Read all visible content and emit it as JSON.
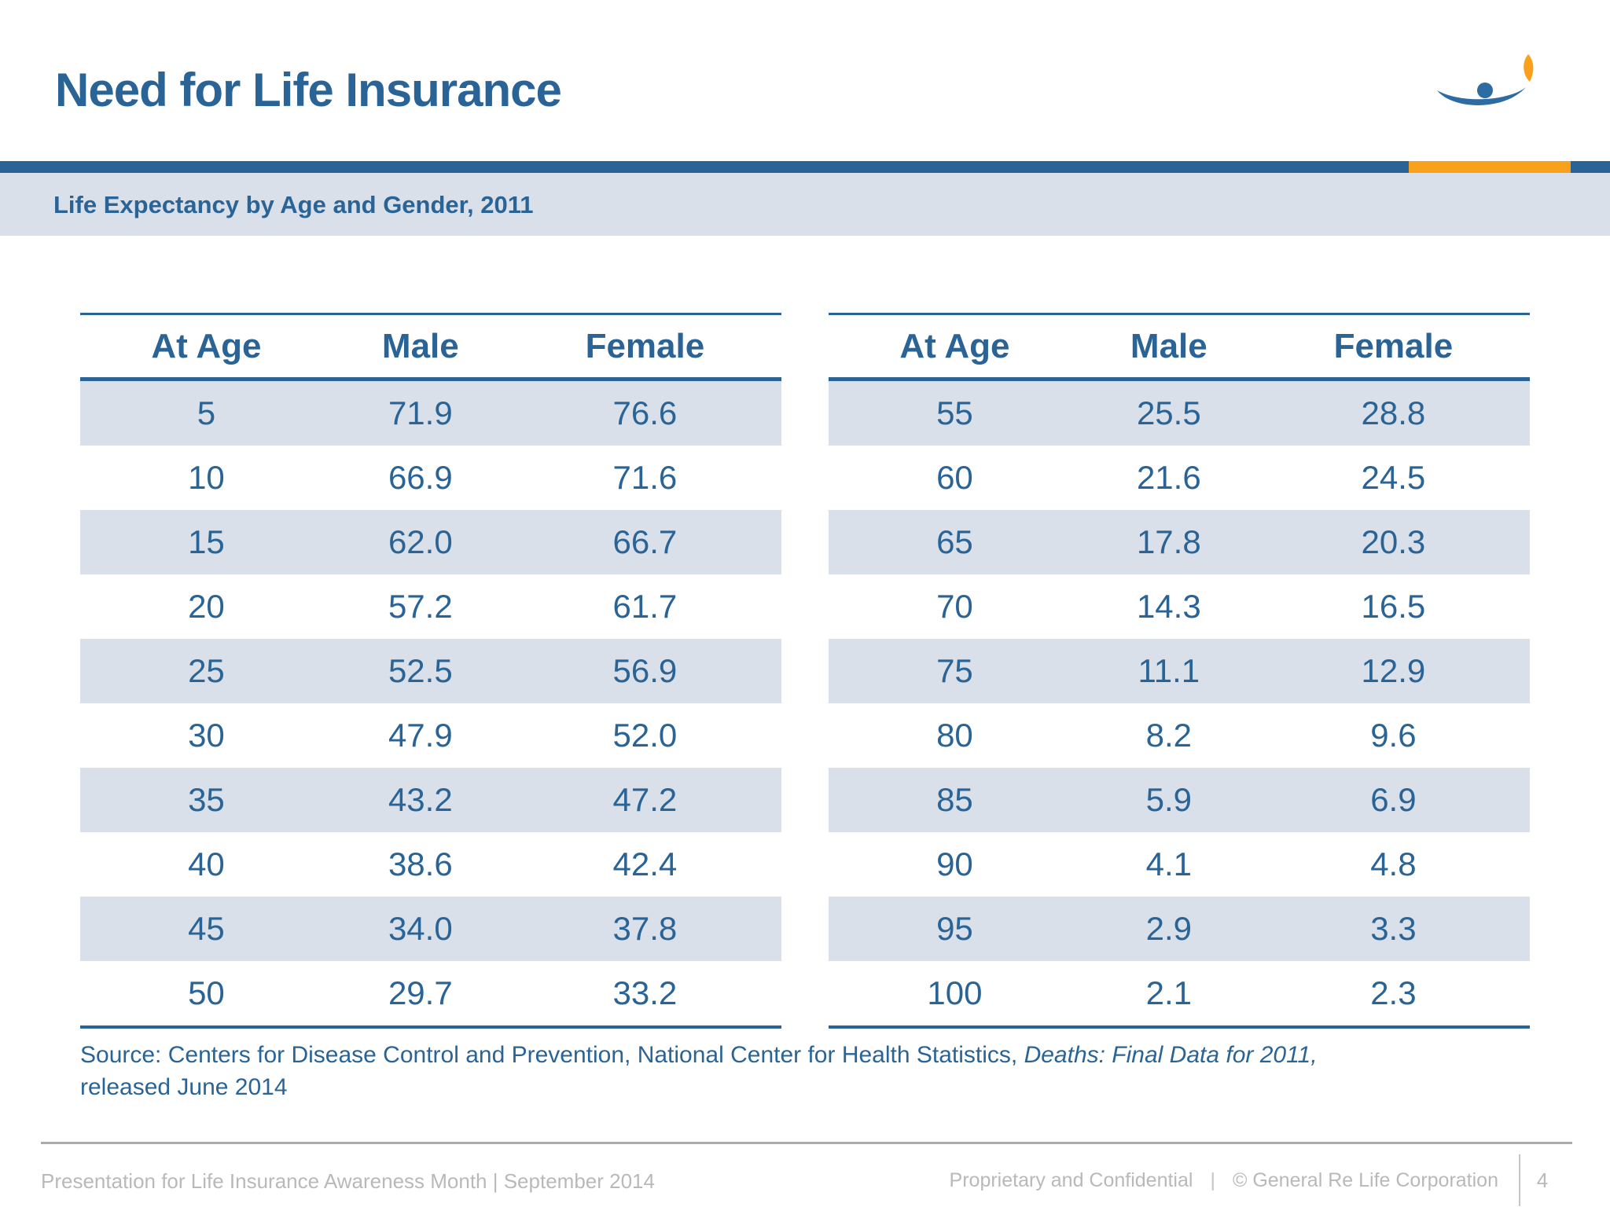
{
  "header": {
    "title": "Need for Life Insurance"
  },
  "subtitle": "Life Expectancy by Age and Gender, 2011",
  "logo": {
    "name": "general-re-life-logo",
    "blue": "#2D6CA2",
    "orange": "#F9A11B"
  },
  "colors": {
    "accent_blue": "#2A6496",
    "accent_orange": "#F9A11B",
    "band_and_stripe": "#D9E0EA",
    "footer_gray": "#B9B9BC"
  },
  "tables": {
    "left": {
      "columns": [
        "At Age",
        "Male",
        "Female"
      ],
      "rows": [
        [
          "5",
          "71.9",
          "76.6"
        ],
        [
          "10",
          "66.9",
          "71.6"
        ],
        [
          "15",
          "62.0",
          "66.7"
        ],
        [
          "20",
          "57.2",
          "61.7"
        ],
        [
          "25",
          "52.5",
          "56.9"
        ],
        [
          "30",
          "47.9",
          "52.0"
        ],
        [
          "35",
          "43.2",
          "47.2"
        ],
        [
          "40",
          "38.6",
          "42.4"
        ],
        [
          "45",
          "34.0",
          "37.8"
        ],
        [
          "50",
          "29.7",
          "33.2"
        ]
      ]
    },
    "right": {
      "columns": [
        "At Age",
        "Male",
        "Female"
      ],
      "rows": [
        [
          "55",
          "25.5",
          "28.8"
        ],
        [
          "60",
          "21.6",
          "24.5"
        ],
        [
          "65",
          "17.8",
          "20.3"
        ],
        [
          "70",
          "14.3",
          "16.5"
        ],
        [
          "75",
          "11.1",
          "12.9"
        ],
        [
          "80",
          "8.2",
          "9.6"
        ],
        [
          "85",
          "5.9",
          "6.9"
        ],
        [
          "90",
          "4.1",
          "4.8"
        ],
        [
          "95",
          "2.9",
          "3.3"
        ],
        [
          "100",
          "2.1",
          "2.3"
        ]
      ]
    }
  },
  "source": {
    "prefix": "Source: Centers for Disease Control and Prevention, National Center for Health Statistics, ",
    "italic": "Deaths: Final Data for 2011,",
    "suffix": "released June 2014"
  },
  "footer": {
    "left": "Presentation for Life Insurance Awareness Month | September 2014",
    "confidential": "Proprietary and Confidential",
    "separator": "|",
    "copyright": "© General Re Life Corporation",
    "page_number": "4"
  }
}
